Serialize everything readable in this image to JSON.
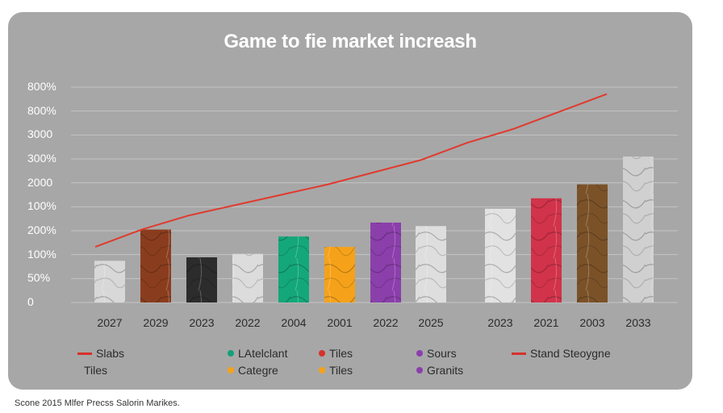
{
  "chart_data": {
    "type": "bar",
    "title": "Game to fie market increash",
    "y_tick_labels": [
      "800%",
      "800%",
      "3000",
      "300%",
      "2000",
      "100%",
      "200%",
      "100%",
      "50%",
      "0"
    ],
    "categories": [
      "2027",
      "2029",
      "2023",
      "2022",
      "2004",
      "2001",
      "2022",
      "2025",
      "2023",
      "2021",
      "2003",
      "2033"
    ],
    "values": [
      1.2,
      2.1,
      1.3,
      1.4,
      1.9,
      1.6,
      2.3,
      2.2,
      2.7,
      3.0,
      3.4,
      4.2
    ],
    "bar_colors": [
      "#d8d8d8",
      "#8a3d1e",
      "#2c2c2c",
      "#dcdcdc",
      "#14a77a",
      "#f5a21a",
      "#8b3fab",
      "#dedede",
      "#e2e2e2",
      "#d1334a",
      "#7b5228",
      "#d0d0d0"
    ],
    "trend_line": {
      "color": "#e03a2e",
      "values": [
        1.6,
        2.1,
        2.5,
        2.8,
        3.1,
        3.4,
        3.75,
        4.1,
        4.6,
        5.0,
        5.5,
        6.0
      ]
    },
    "legend": [
      {
        "label": "Slabs",
        "marker": "line",
        "color": "#d6322b"
      },
      {
        "label": "Tiles",
        "marker": "none",
        "color": ""
      },
      {
        "label": "LAtelclant",
        "marker": "dot",
        "color": "#12a07a"
      },
      {
        "label": "Categre",
        "marker": "dot",
        "color": "#f5a21a"
      },
      {
        "label": "Tiles",
        "marker": "dot",
        "color": "#d6322b"
      },
      {
        "label": "Tiles",
        "marker": "dot",
        "color": "#f5a21a"
      },
      {
        "label": "Sours",
        "marker": "dot",
        "color": "#8b3fab"
      },
      {
        "label": "Granits",
        "marker": "dot",
        "color": "#8b3fab"
      },
      {
        "label": "Stand Steoygne",
        "marker": "line",
        "color": "#d6322b"
      }
    ],
    "grid": true
  },
  "source": "Scone 2015 Mlfer Precss Salorin Marikes."
}
